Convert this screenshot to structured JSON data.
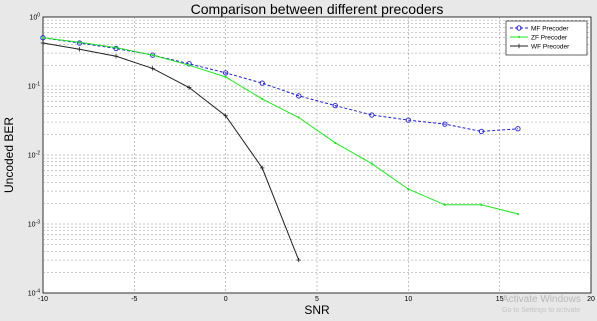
{
  "chart_data": {
    "type": "line",
    "title": "Comparison between different precoders",
    "xlabel": "SNR",
    "ylabel": "Uncoded BER",
    "xlim": [
      -10,
      20
    ],
    "xticks": [
      -10,
      -5,
      0,
      5,
      10,
      15,
      20
    ],
    "ylim": [
      0.0001,
      1
    ],
    "yscale": "log",
    "yticks": [
      0.0001,
      0.001,
      0.01,
      0.1,
      1
    ],
    "ytick_labels": [
      {
        "base": "10",
        "exp": "-4"
      },
      {
        "base": "10",
        "exp": "-3"
      },
      {
        "base": "10",
        "exp": "-2"
      },
      {
        "base": "10",
        "exp": "-1"
      },
      {
        "base": "10",
        "exp": "0"
      }
    ],
    "grid": true,
    "legend_position": "top-right",
    "series": [
      {
        "name": "MF Precoder",
        "color": "#1f1fd6",
        "marker": "circle",
        "line_style": "dashed",
        "x": [
          -10,
          -8,
          -6,
          -4,
          -2,
          0,
          2,
          4,
          6,
          8,
          10,
          12,
          14,
          16
        ],
        "y": [
          0.5,
          0.42,
          0.35,
          0.28,
          0.21,
          0.155,
          0.11,
          0.072,
          0.052,
          0.038,
          0.032,
          0.028,
          0.022,
          0.024
        ]
      },
      {
        "name": "ZF Precoder",
        "color": "#22e522",
        "marker": "dot",
        "line_style": "solid",
        "x": [
          -10,
          -8,
          -6,
          -4,
          -2,
          0,
          2,
          4,
          6,
          8,
          10,
          12,
          14,
          16
        ],
        "y": [
          0.5,
          0.43,
          0.36,
          0.28,
          0.2,
          0.135,
          0.065,
          0.035,
          0.015,
          0.0075,
          0.0032,
          0.0019,
          0.0019,
          0.0014
        ]
      },
      {
        "name": "WF Precoder",
        "color": "#222222",
        "marker": "plus",
        "line_style": "solid",
        "x": [
          -10,
          -8,
          -6,
          -4,
          -2,
          0,
          2,
          4
        ],
        "y": [
          0.42,
          0.34,
          0.27,
          0.18,
          0.095,
          0.037,
          0.0065,
          0.0003
        ]
      }
    ]
  },
  "watermark": {
    "line1": "Activate Windows",
    "line2": "Go to Settings to activate"
  }
}
